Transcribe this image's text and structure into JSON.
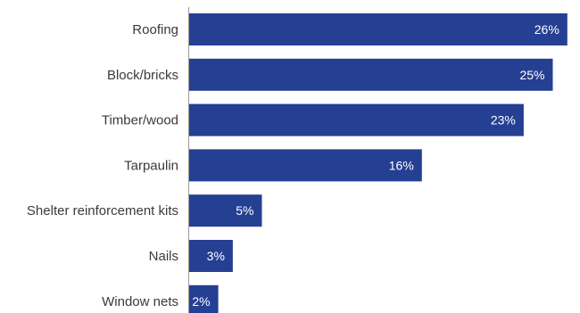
{
  "chart_data": {
    "type": "bar",
    "orientation": "horizontal",
    "categories": [
      "Roofing",
      "Block/bricks",
      "Timber/wood",
      "Tarpaulin",
      "Shelter reinforcement kits",
      "Nails",
      "Window nets"
    ],
    "values": [
      26,
      25,
      23,
      16,
      5,
      3,
      2
    ],
    "data_labels": [
      "26%",
      "25%",
      "23%",
      "16%",
      "5%",
      "3%",
      "2%"
    ],
    "unit": "%",
    "title": "",
    "xlabel": "",
    "ylabel": "",
    "xlim": [
      0,
      27
    ],
    "grid": false,
    "legend": "none",
    "colors": {
      "bar": "#253f93",
      "label_text": "#3a3a3a",
      "value_text": "#ffffff",
      "axis": "#9a9a9a"
    }
  }
}
